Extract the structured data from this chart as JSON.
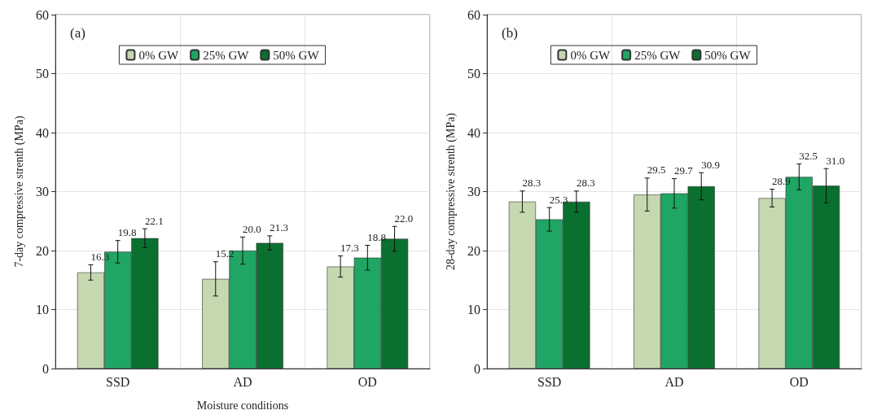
{
  "chart_data": [
    {
      "type": "bar",
      "annotations": [
        "(a)"
      ],
      "xlabel": "Moisture conditions",
      "ylabel": "7-day compressive strenth (MPa)",
      "categories": [
        "SSD",
        "AD",
        "OD"
      ],
      "series": [
        {
          "name": "0% GW",
          "color": "#c5d8b0",
          "values": [
            16.3,
            15.2,
            17.3
          ],
          "errors": [
            1.3,
            2.9,
            1.8
          ],
          "value_labels": [
            "16.3",
            "15.2",
            "17.3"
          ]
        },
        {
          "name": "25% GW",
          "color": "#1fa564",
          "values": [
            19.8,
            20.0,
            18.8
          ],
          "errors": [
            1.9,
            2.3,
            2.1
          ],
          "value_labels": [
            "19.8",
            "20.0",
            "18.8"
          ]
        },
        {
          "name": "50% GW",
          "color": "#0a7030",
          "values": [
            22.1,
            21.3,
            22.0
          ],
          "errors": [
            1.6,
            1.2,
            2.1
          ],
          "value_labels": [
            "22.1",
            "21.3",
            "22.0"
          ]
        }
      ],
      "ylim": [
        0,
        60
      ],
      "yticks": [
        0,
        10,
        20,
        30,
        40,
        50,
        60
      ],
      "grid": true,
      "legend": "top"
    },
    {
      "type": "bar",
      "annotations": [
        "(b)"
      ],
      "ylabel": "28-day compressive strenth (MPa)",
      "categories": [
        "SSD",
        "AD",
        "OD"
      ],
      "series": [
        {
          "name": "0% GW",
          "color": "#c5d8b0",
          "values": [
            28.3,
            29.5,
            28.9
          ],
          "errors": [
            1.8,
            2.8,
            1.5
          ],
          "value_labels": [
            "28.3",
            "29.5",
            "28.9"
          ]
        },
        {
          "name": "25% GW",
          "color": "#1fa564",
          "values": [
            25.3,
            29.7,
            32.5
          ],
          "errors": [
            2.0,
            2.5,
            2.2
          ],
          "value_labels": [
            "25.3",
            "29.7",
            "32.5"
          ]
        },
        {
          "name": "50% GW",
          "color": "#0a7030",
          "values": [
            28.3,
            30.9,
            31.0
          ],
          "errors": [
            1.8,
            2.3,
            2.9
          ],
          "value_labels": [
            "28.3",
            "30.9",
            "31.0"
          ]
        }
      ],
      "ylim": [
        0,
        60
      ],
      "yticks": [
        0,
        10,
        20,
        30,
        40,
        50,
        60
      ],
      "grid": true,
      "legend": "top"
    }
  ]
}
